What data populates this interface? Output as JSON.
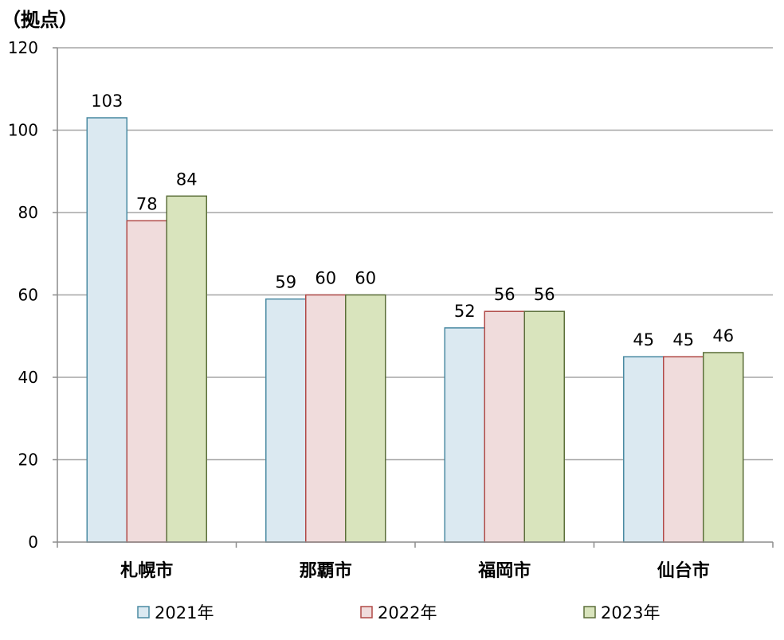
{
  "chart_data": {
    "type": "bar",
    "unit_label": "（拠点）",
    "categories": [
      "札幌市",
      "那覇市",
      "福岡市",
      "仙台市"
    ],
    "series": [
      {
        "name": "2021年",
        "values": [
          103,
          59,
          52,
          45
        ],
        "fill": "#dbe9f1",
        "stroke": "#4a8aa2"
      },
      {
        "name": "2022年",
        "values": [
          78,
          60,
          56,
          45
        ],
        "fill": "#f0dcdc",
        "stroke": "#b04a47"
      },
      {
        "name": "2023年",
        "values": [
          84,
          60,
          56,
          46
        ],
        "fill": "#d9e4bd",
        "stroke": "#5c6f3a"
      }
    ],
    "ylim": [
      0,
      120
    ],
    "yticks": [
      0,
      20,
      40,
      60,
      80,
      100,
      120
    ],
    "grid": true,
    "data_labels": true,
    "legend_position": "bottom"
  }
}
